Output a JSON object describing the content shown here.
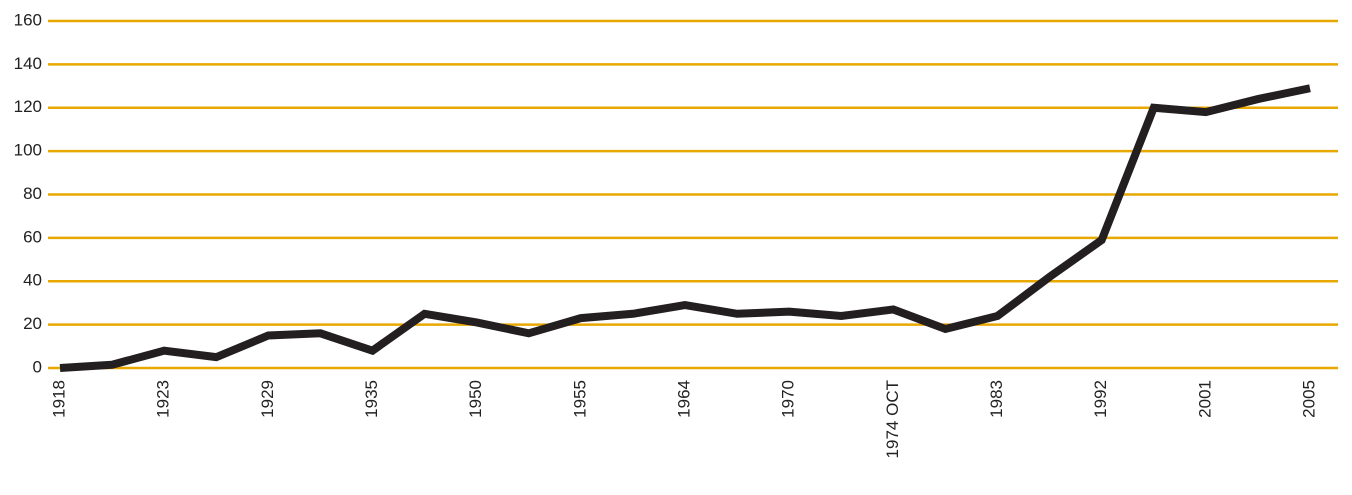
{
  "chart_data": {
    "type": "line",
    "categories": [
      "1918",
      null,
      "1923",
      null,
      "1929",
      null,
      "1935",
      null,
      "1950",
      null,
      "1955",
      null,
      "1964",
      null,
      "1970",
      null,
      "1974 OCT",
      null,
      "1983",
      null,
      "1992",
      null,
      "2001",
      null,
      "2005"
    ],
    "values": [
      0,
      1.5,
      8,
      5,
      15,
      16,
      8,
      25,
      21,
      16,
      23,
      25,
      29,
      25,
      26,
      24,
      27,
      18,
      24,
      42,
      59,
      120,
      118,
      124,
      129
    ],
    "color": "#231f20",
    "grid_color": "#e8a800",
    "ylim": [
      0,
      160
    ],
    "yticks": [
      0,
      20,
      40,
      60,
      80,
      100,
      120,
      140,
      160
    ],
    "grid": true
  }
}
